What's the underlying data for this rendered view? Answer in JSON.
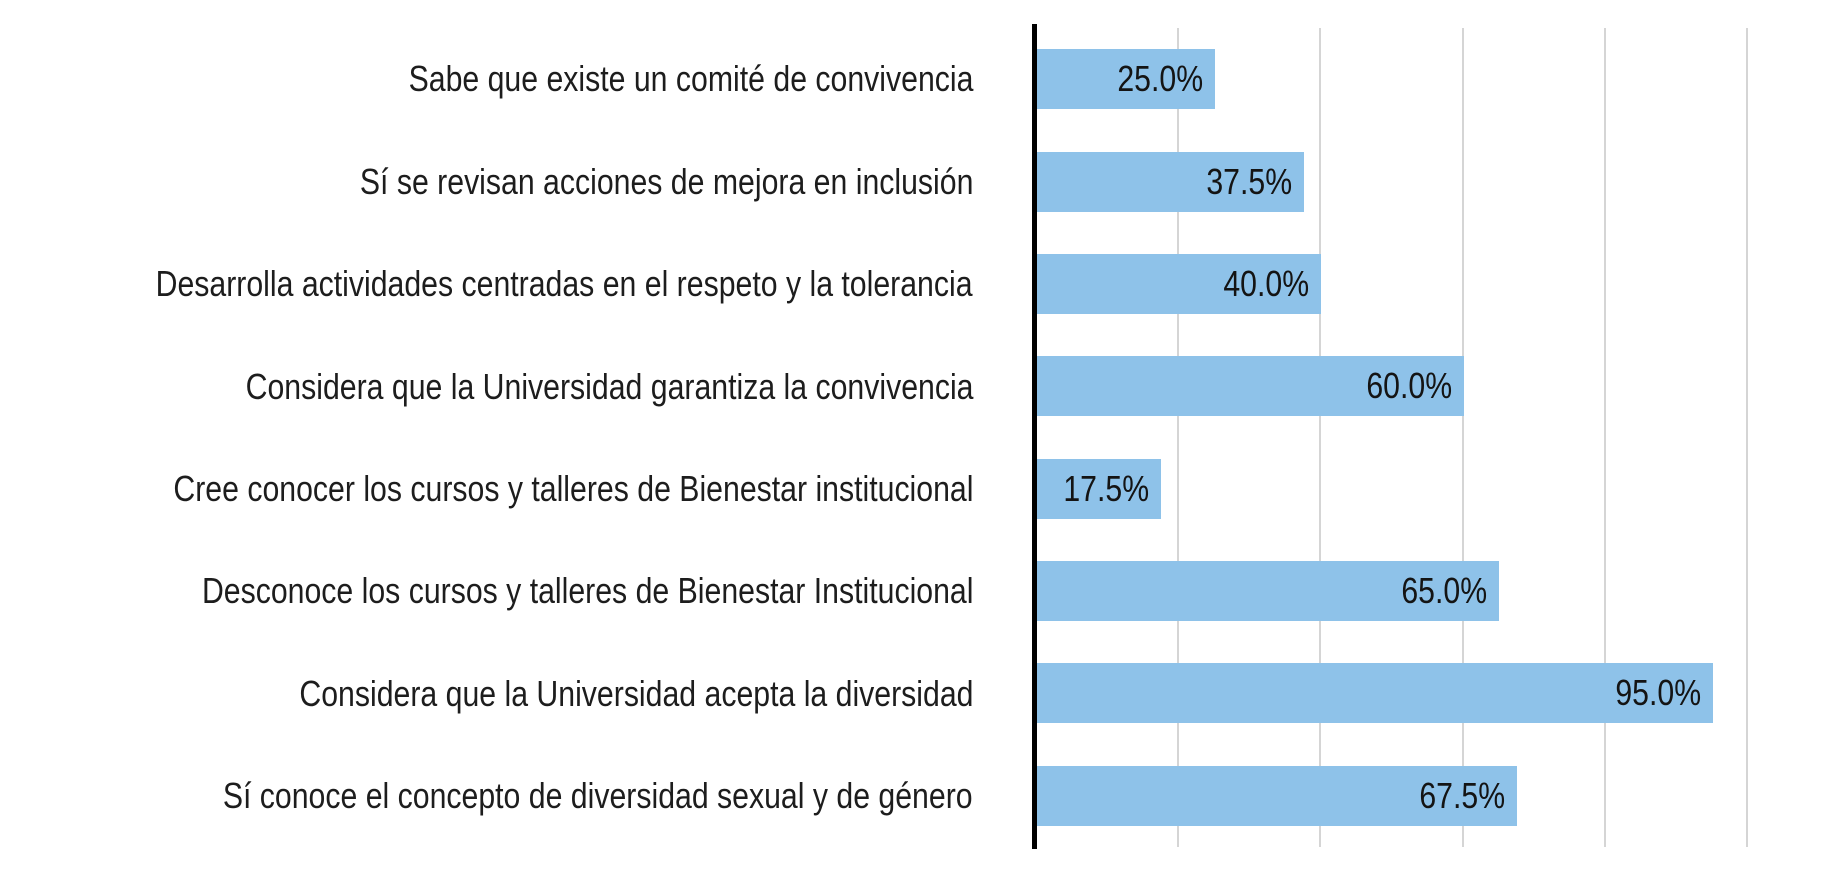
{
  "chart_data": {
    "type": "bar",
    "orientation": "horizontal",
    "title": "",
    "xlabel": "",
    "ylabel": "",
    "categories": [
      "Sabe que existe un comité de convivencia",
      "Sí se revisan acciones de mejora en inclusión",
      "Desarrolla actividades centradas en el respeto y la tolerancia",
      "Considera que la Universidad garantiza la convivencia",
      "Cree conocer los cursos y talleres de Bienestar institucional",
      "Desconoce los cursos y talleres de Bienestar Institucional",
      "Considera que la Universidad acepta la diversidad",
      "Sí conoce el concepto de diversidad sexual y de género"
    ],
    "values": [
      25.0,
      37.5,
      40.0,
      60.0,
      17.5,
      65.0,
      95.0,
      67.5
    ],
    "value_labels": [
      "25.0%",
      "37.5%",
      "40.0%",
      "60.0%",
      "17.5%",
      "65.0%",
      "95.0%",
      "67.5%"
    ],
    "value_label_position": "inside-end",
    "xlim": [
      0,
      110.8
    ],
    "gridline_step": 20,
    "gridline_max": 100,
    "grid": true,
    "legend": "none",
    "colors": {
      "bar_fill": "#8EC2E9",
      "gridline": "#D5D5D5",
      "axis_line": "#000000",
      "category_text": "#1D1D1D",
      "value_text": "#141414",
      "background": "#FFFFFF"
    }
  }
}
